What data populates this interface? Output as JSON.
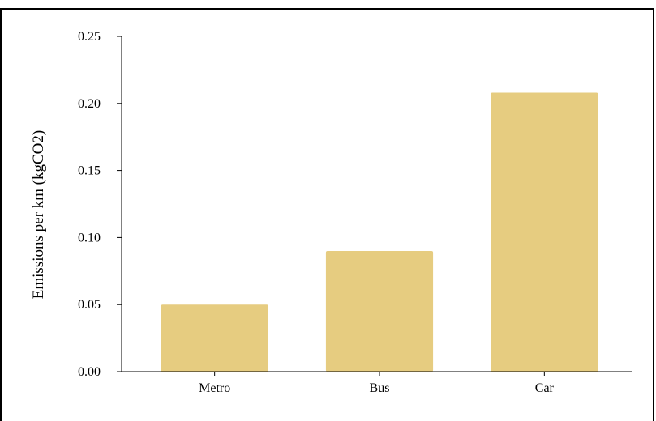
{
  "chart_data": {
    "type": "bar",
    "categories": [
      "Metro",
      "Bus",
      "Car"
    ],
    "values": [
      0.05,
      0.09,
      0.208
    ],
    "title": "",
    "xlabel": "",
    "ylabel": "Emissions per km (kgCO2)",
    "ylim": [
      0,
      0.25
    ],
    "yticks": [
      "0.00",
      "0.05",
      "0.10",
      "0.15",
      "0.20",
      "0.25"
    ],
    "bar_color": "#e6cc80",
    "grid": false,
    "legend": "none"
  }
}
